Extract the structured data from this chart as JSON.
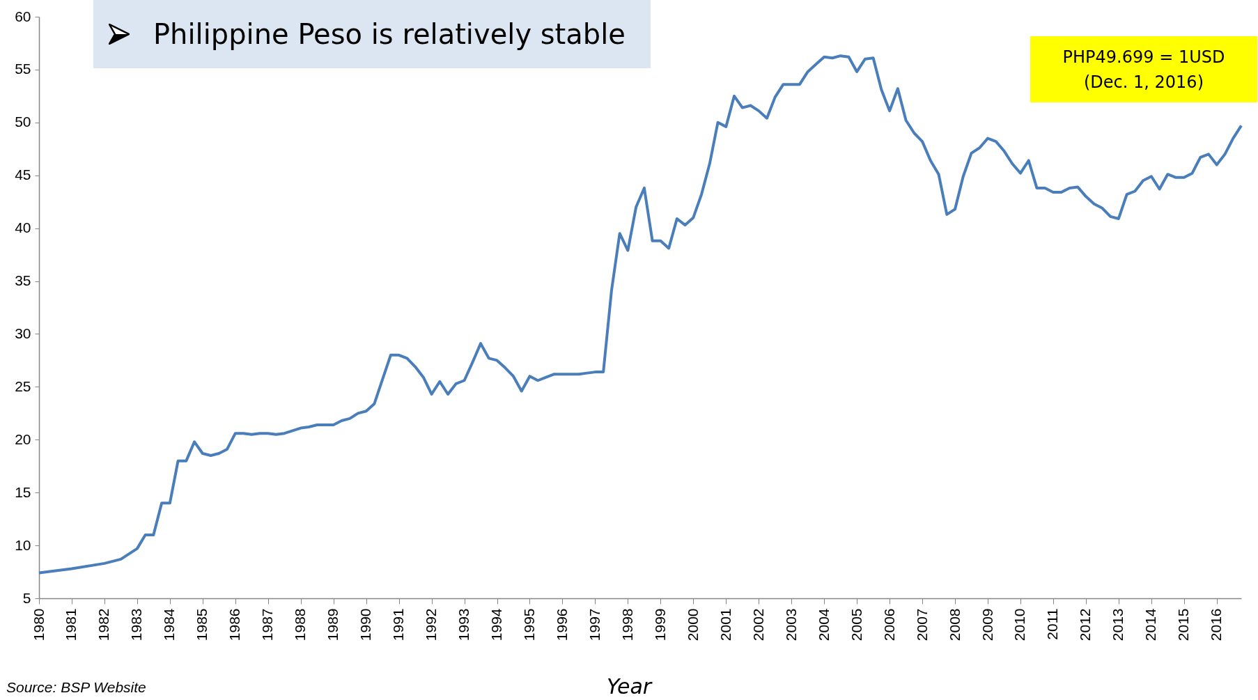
{
  "chart_data": {
    "type": "line",
    "title": "Philippine Peso is relatively stable",
    "xlabel": "Year",
    "annotations": [
      "PHP49.699 = 1USD\n(Dec. 1, 2016)",
      "Source: BSP Website"
    ],
    "xlim": [
      1980,
      2016.75
    ],
    "xticks": [
      1980,
      1981,
      1982,
      1983,
      1984,
      1985,
      1986,
      1987,
      1988,
      1989,
      1990,
      1991,
      1992,
      1993,
      1994,
      1995,
      1996,
      1997,
      1998,
      1999,
      2000,
      2001,
      2002,
      2003,
      2004,
      2005,
      2006,
      2007,
      2008,
      2009,
      2010,
      2011,
      2012,
      2013,
      2014,
      2015,
      2016
    ],
    "ylim": [
      5,
      60
    ],
    "yticks": [
      5,
      10,
      15,
      20,
      25,
      30,
      35,
      40,
      45,
      50,
      55,
      60
    ],
    "grid": false,
    "legend": false,
    "marker": "none",
    "line_style": "solid",
    "series": [
      {
        "color": "#4a7ebb",
        "x": [
          1980,
          1981,
          1982,
          1982.5,
          1983,
          1983.25,
          1983.5,
          1983.75,
          1984,
          1984.25,
          1984.5,
          1984.75,
          1985,
          1985.25,
          1985.5,
          1985.75,
          1986,
          1986.25,
          1986.5,
          1986.75,
          1987,
          1987.25,
          1987.5,
          1988,
          1988.25,
          1988.5,
          1989,
          1989.25,
          1989.5,
          1989.75,
          1990,
          1990.25,
          1990.5,
          1990.75,
          1991,
          1991.25,
          1991.5,
          1991.75,
          1992,
          1992.25,
          1992.5,
          1992.75,
          1993,
          1993.25,
          1993.5,
          1993.75,
          1994,
          1994.25,
          1994.5,
          1994.75,
          1995,
          1995.25,
          1995.5,
          1995.75,
          1996,
          1996.5,
          1996.75,
          1997,
          1997.25,
          1997.5,
          1997.75,
          1998,
          1998.25,
          1998.5,
          1998.75,
          1999,
          1999.25,
          1999.5,
          1999.75,
          2000,
          2000.25,
          2000.5,
          2000.75,
          2001,
          2001.25,
          2001.5,
          2001.75,
          2002,
          2002.25,
          2002.5,
          2002.75,
          2003,
          2003.25,
          2003.5,
          2003.75,
          2004,
          2004.25,
          2004.5,
          2004.75,
          2005,
          2005.25,
          2005.5,
          2005.75,
          2006,
          2006.25,
          2006.5,
          2006.75,
          2007,
          2007.25,
          2007.5,
          2007.75,
          2008,
          2008.25,
          2008.5,
          2008.75,
          2009,
          2009.25,
          2009.5,
          2009.75,
          2010,
          2010.25,
          2010.5,
          2010.75,
          2011,
          2011.25,
          2011.5,
          2011.75,
          2012,
          2012.25,
          2012.5,
          2012.75,
          2013,
          2013.25,
          2013.5,
          2013.75,
          2014,
          2014.25,
          2014.5,
          2014.75,
          2015,
          2015.25,
          2015.5,
          2015.75,
          2016,
          2016.25,
          2016.5,
          2016.75
        ],
        "values": [
          7.4,
          7.8,
          8.3,
          8.7,
          9.7,
          11,
          11,
          14,
          14,
          18,
          18,
          19.8,
          18.7,
          18.5,
          18.7,
          19.1,
          20.6,
          20.6,
          20.5,
          20.6,
          20.6,
          20.5,
          20.6,
          21.1,
          21.2,
          21.4,
          21.4,
          21.8,
          22,
          22.5,
          22.7,
          23.4,
          25.7,
          28,
          28,
          27.7,
          26.9,
          25.9,
          24.3,
          25.5,
          24.3,
          25.3,
          25.6,
          27.3,
          29.1,
          27.7,
          27.5,
          26.8,
          26,
          24.6,
          26,
          25.6,
          25.9,
          26.2,
          26.2,
          26.2,
          26.3,
          26.4,
          26.4,
          34.1,
          39.5,
          37.9,
          42,
          43.8,
          38.8,
          38.8,
          38.1,
          40.9,
          40.3,
          41,
          43.2,
          46.1,
          50,
          49.6,
          52.5,
          51.4,
          51.6,
          51.1,
          50.4,
          52.4,
          53.6,
          53.6,
          53.6,
          54.8,
          55.5,
          56.2,
          56.1,
          56.3,
          56.2,
          54.8,
          56,
          56.1,
          53.1,
          51.1,
          53.2,
          50.2,
          49,
          48.2,
          46.4,
          45.1,
          41.3,
          41.8,
          44.9,
          47.1,
          47.6,
          48.5,
          48.2,
          47.3,
          46.1,
          45.2,
          46.4,
          43.8,
          43.8,
          43.4,
          43.4,
          43.8,
          43.9,
          43,
          42.3,
          41.9,
          41.1,
          40.9,
          43.2,
          43.5,
          44.5,
          44.9,
          43.7,
          45.1,
          44.8,
          44.8,
          45.2,
          46.7,
          47,
          46,
          47,
          48.5,
          49.7
        ]
      }
    ]
  }
}
